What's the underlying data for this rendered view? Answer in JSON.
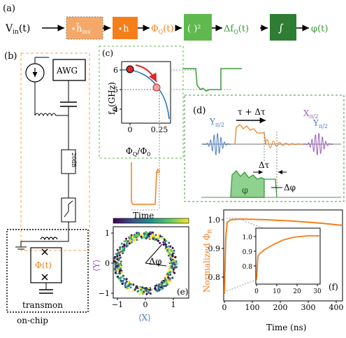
{
  "panel_labels": {
    "a": "(a)",
    "b": "(b)",
    "c": "(c)",
    "d": "(d)",
    "e": "(e)",
    "f": "(f)"
  },
  "chain": {
    "input": "V",
    "input_sub": "in",
    "input_arg": "(t)",
    "block1": "⋆h̃",
    "block1_sub": "inv",
    "block2": "⋆h",
    "signal1": "Φ",
    "signal1_sub": "Q",
    "signal1_arg": "(t)",
    "block3": "( )²",
    "signal2": "Δf",
    "signal2_sub": "Q",
    "signal2_arg": "(t)",
    "block4": "∫",
    "output": "φ(t)",
    "colors": {
      "light_orange": "#f6a868",
      "orange": "#f47f1a",
      "light_green": "#5fb94f",
      "dark_green": "#2f7d32"
    }
  },
  "circuit": {
    "awg": "AWG",
    "attenuator": "20dB",
    "flux": "Φ(t)",
    "transmon": "transmon",
    "onchip": "on-chip"
  },
  "panel_c": {
    "ylabel": "f",
    "ylabel_sub": "Q",
    "ylabel_unit": "(GHz)",
    "xlabel": "Φ",
    "xlabel_sub": "Q",
    "xlabel_tail": "/Φ",
    "xlabel_tail_sub": "0",
    "yticks": [
      "4",
      "5",
      "6"
    ],
    "xticks": [
      "0",
      "0.25"
    ],
    "time_label": "Time",
    "curve_color": "#2a7ab8",
    "marker_color": "#e0272a"
  },
  "panel_d": {
    "tau_label": "τ + Δτ",
    "y_label": "Y",
    "y_sub": "π/2",
    "x_label": "X",
    "x_sub": "π/2",
    "y2_label": "Y",
    "y2_sub": "π/2",
    "dtau_label": "Δτ",
    "phi_label": "φ",
    "dphi_label": "Δφ",
    "colors": {
      "y": "#4b7cc2",
      "x": "#9b5fc0"
    }
  },
  "panel_e": {
    "xlabel": "⟨X⟩",
    "ylabel": "⟨Y⟩",
    "xticks": [
      "−1",
      "0",
      "1"
    ],
    "yticks": [
      "1",
      "0",
      "−1"
    ],
    "dphi_label": "Δφ"
  },
  "panel_f": {
    "ylabel": "Normalized Φ",
    "ylabel_sub": "R",
    "xlabel": "Time (ns)",
    "yticks": [
      "0.8",
      "0.9",
      "1.0"
    ],
    "xticks": [
      "0",
      "100",
      "200",
      "300",
      "400"
    ],
    "inset_yticks": [
      "0.8",
      "0.9",
      "1.0"
    ],
    "inset_xticks": [
      "0",
      "10",
      "20",
      "30"
    ],
    "color": "#f47f1a"
  }
}
